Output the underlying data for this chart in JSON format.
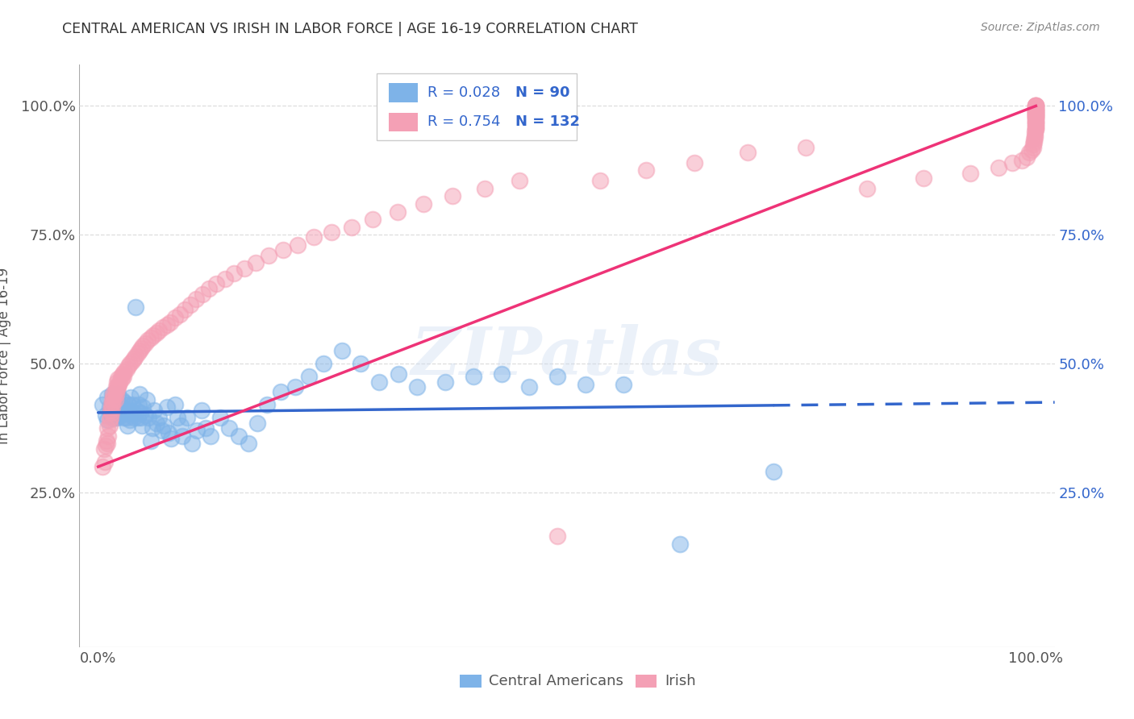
{
  "title": "CENTRAL AMERICAN VS IRISH IN LABOR FORCE | AGE 16-19 CORRELATION CHART",
  "source": "Source: ZipAtlas.com",
  "ylabel": "In Labor Force | Age 16-19",
  "xlim": [
    -0.02,
    1.02
  ],
  "ylim": [
    -0.05,
    1.08
  ],
  "ytick_positions": [
    0.25,
    0.5,
    0.75,
    1.0
  ],
  "ytick_labels_left": [
    "25.0%",
    "50.0%",
    "75.0%",
    "100.0%"
  ],
  "ytick_labels_right": [
    "25.0%",
    "50.0%",
    "75.0%",
    "100.0%"
  ],
  "xtick_positions": [
    0.0,
    1.0
  ],
  "xtick_labels": [
    "0.0%",
    "100.0%"
  ],
  "legend_labels": [
    "Central Americans",
    "Irish"
  ],
  "blue_R": 0.028,
  "blue_N": 90,
  "pink_R": 0.754,
  "pink_N": 132,
  "blue_color": "#7EB3E8",
  "pink_color": "#F4A0B5",
  "blue_line_color": "#3366CC",
  "pink_line_color": "#EE3377",
  "watermark": "ZIPatlas",
  "background_color": "#FFFFFF",
  "grid_color": "#DDDDDD",
  "blue_line_solid_end": 0.72,
  "blue_line_y_start": 0.405,
  "blue_line_y_end": 0.425,
  "pink_line_x_start": 0.0,
  "pink_line_y_start": 0.3,
  "pink_line_x_end": 1.0,
  "pink_line_y_end": 1.0,
  "blue_scatter_x": [
    0.005,
    0.008,
    0.01,
    0.01,
    0.012,
    0.013,
    0.015,
    0.015,
    0.016,
    0.017,
    0.018,
    0.018,
    0.019,
    0.02,
    0.02,
    0.021,
    0.022,
    0.023,
    0.024,
    0.025,
    0.025,
    0.026,
    0.027,
    0.028,
    0.029,
    0.03,
    0.031,
    0.032,
    0.033,
    0.034,
    0.035,
    0.036,
    0.037,
    0.038,
    0.04,
    0.041,
    0.042,
    0.043,
    0.044,
    0.045,
    0.046,
    0.047,
    0.048,
    0.05,
    0.052,
    0.054,
    0.056,
    0.058,
    0.06,
    0.062,
    0.065,
    0.068,
    0.07,
    0.073,
    0.075,
    0.078,
    0.082,
    0.085,
    0.088,
    0.09,
    0.095,
    0.1,
    0.105,
    0.11,
    0.115,
    0.12,
    0.13,
    0.14,
    0.15,
    0.16,
    0.17,
    0.18,
    0.195,
    0.21,
    0.225,
    0.24,
    0.26,
    0.28,
    0.3,
    0.32,
    0.34,
    0.37,
    0.4,
    0.43,
    0.46,
    0.49,
    0.52,
    0.56,
    0.62,
    0.72
  ],
  "blue_scatter_y": [
    0.42,
    0.4,
    0.39,
    0.435,
    0.415,
    0.405,
    0.395,
    0.44,
    0.425,
    0.41,
    0.395,
    0.435,
    0.415,
    0.405,
    0.395,
    0.44,
    0.42,
    0.41,
    0.4,
    0.43,
    0.415,
    0.405,
    0.395,
    0.425,
    0.41,
    0.395,
    0.38,
    0.42,
    0.405,
    0.39,
    0.435,
    0.42,
    0.405,
    0.395,
    0.61,
    0.41,
    0.395,
    0.42,
    0.44,
    0.405,
    0.395,
    0.38,
    0.415,
    0.4,
    0.43,
    0.395,
    0.35,
    0.375,
    0.41,
    0.385,
    0.395,
    0.37,
    0.38,
    0.415,
    0.365,
    0.355,
    0.42,
    0.395,
    0.38,
    0.36,
    0.395,
    0.345,
    0.37,
    0.41,
    0.375,
    0.36,
    0.395,
    0.375,
    0.36,
    0.345,
    0.385,
    0.42,
    0.445,
    0.455,
    0.475,
    0.5,
    0.525,
    0.5,
    0.465,
    0.48,
    0.455,
    0.465,
    0.475,
    0.48,
    0.455,
    0.475,
    0.46,
    0.46,
    0.15,
    0.29
  ],
  "pink_scatter_x": [
    0.005,
    0.006,
    0.007,
    0.008,
    0.009,
    0.01,
    0.01,
    0.011,
    0.012,
    0.012,
    0.013,
    0.013,
    0.014,
    0.014,
    0.015,
    0.015,
    0.016,
    0.016,
    0.017,
    0.018,
    0.018,
    0.019,
    0.019,
    0.02,
    0.02,
    0.021,
    0.021,
    0.022,
    0.023,
    0.024,
    0.025,
    0.026,
    0.027,
    0.028,
    0.03,
    0.032,
    0.034,
    0.036,
    0.038,
    0.04,
    0.042,
    0.044,
    0.046,
    0.048,
    0.05,
    0.053,
    0.056,
    0.059,
    0.062,
    0.065,
    0.069,
    0.073,
    0.077,
    0.082,
    0.087,
    0.092,
    0.098,
    0.104,
    0.111,
    0.118,
    0.126,
    0.135,
    0.145,
    0.156,
    0.168,
    0.182,
    0.197,
    0.213,
    0.23,
    0.249,
    0.27,
    0.293,
    0.319,
    0.347,
    0.378,
    0.412,
    0.449,
    0.49,
    0.535,
    0.584,
    0.636,
    0.693,
    0.755,
    0.82,
    0.88,
    0.93,
    0.96,
    0.975,
    0.985,
    0.99,
    0.993,
    0.995,
    0.997,
    0.997,
    0.998,
    0.998,
    0.999,
    0.999,
    0.999,
    1.0,
    1.0,
    1.0,
    1.0,
    1.0,
    1.0,
    1.0,
    1.0,
    1.0,
    1.0,
    1.0,
    1.0,
    1.0,
    1.0,
    1.0,
    1.0,
    1.0,
    1.0,
    1.0,
    1.0,
    1.0,
    1.0,
    1.0,
    1.0,
    1.0,
    1.0,
    1.0,
    1.0,
    1.0,
    1.0,
    1.0,
    1.0,
    1.0
  ],
  "pink_scatter_y": [
    0.3,
    0.335,
    0.31,
    0.34,
    0.35,
    0.345,
    0.375,
    0.36,
    0.38,
    0.39,
    0.395,
    0.41,
    0.405,
    0.42,
    0.415,
    0.43,
    0.425,
    0.44,
    0.435,
    0.43,
    0.445,
    0.44,
    0.455,
    0.45,
    0.465,
    0.455,
    0.47,
    0.46,
    0.465,
    0.475,
    0.47,
    0.48,
    0.475,
    0.485,
    0.49,
    0.495,
    0.5,
    0.505,
    0.51,
    0.515,
    0.52,
    0.525,
    0.53,
    0.535,
    0.54,
    0.545,
    0.55,
    0.555,
    0.56,
    0.565,
    0.57,
    0.575,
    0.58,
    0.59,
    0.595,
    0.605,
    0.615,
    0.625,
    0.635,
    0.645,
    0.655,
    0.665,
    0.675,
    0.685,
    0.695,
    0.71,
    0.72,
    0.73,
    0.745,
    0.755,
    0.765,
    0.78,
    0.795,
    0.81,
    0.825,
    0.84,
    0.855,
    0.165,
    0.855,
    0.875,
    0.89,
    0.91,
    0.92,
    0.84,
    0.86,
    0.87,
    0.88,
    0.89,
    0.895,
    0.9,
    0.91,
    0.915,
    0.92,
    0.925,
    0.93,
    0.935,
    0.94,
    0.945,
    0.95,
    0.955,
    0.96,
    0.965,
    0.97,
    0.975,
    0.98,
    0.985,
    0.99,
    0.995,
    1.0,
    0.955,
    0.96,
    0.965,
    0.97,
    0.975,
    0.98,
    0.985,
    0.99,
    0.995,
    1.0,
    0.97,
    0.975,
    0.98,
    0.985,
    0.99,
    0.995,
    1.0,
    0.98,
    0.985,
    0.99,
    0.995,
    1.0,
    1.0
  ]
}
